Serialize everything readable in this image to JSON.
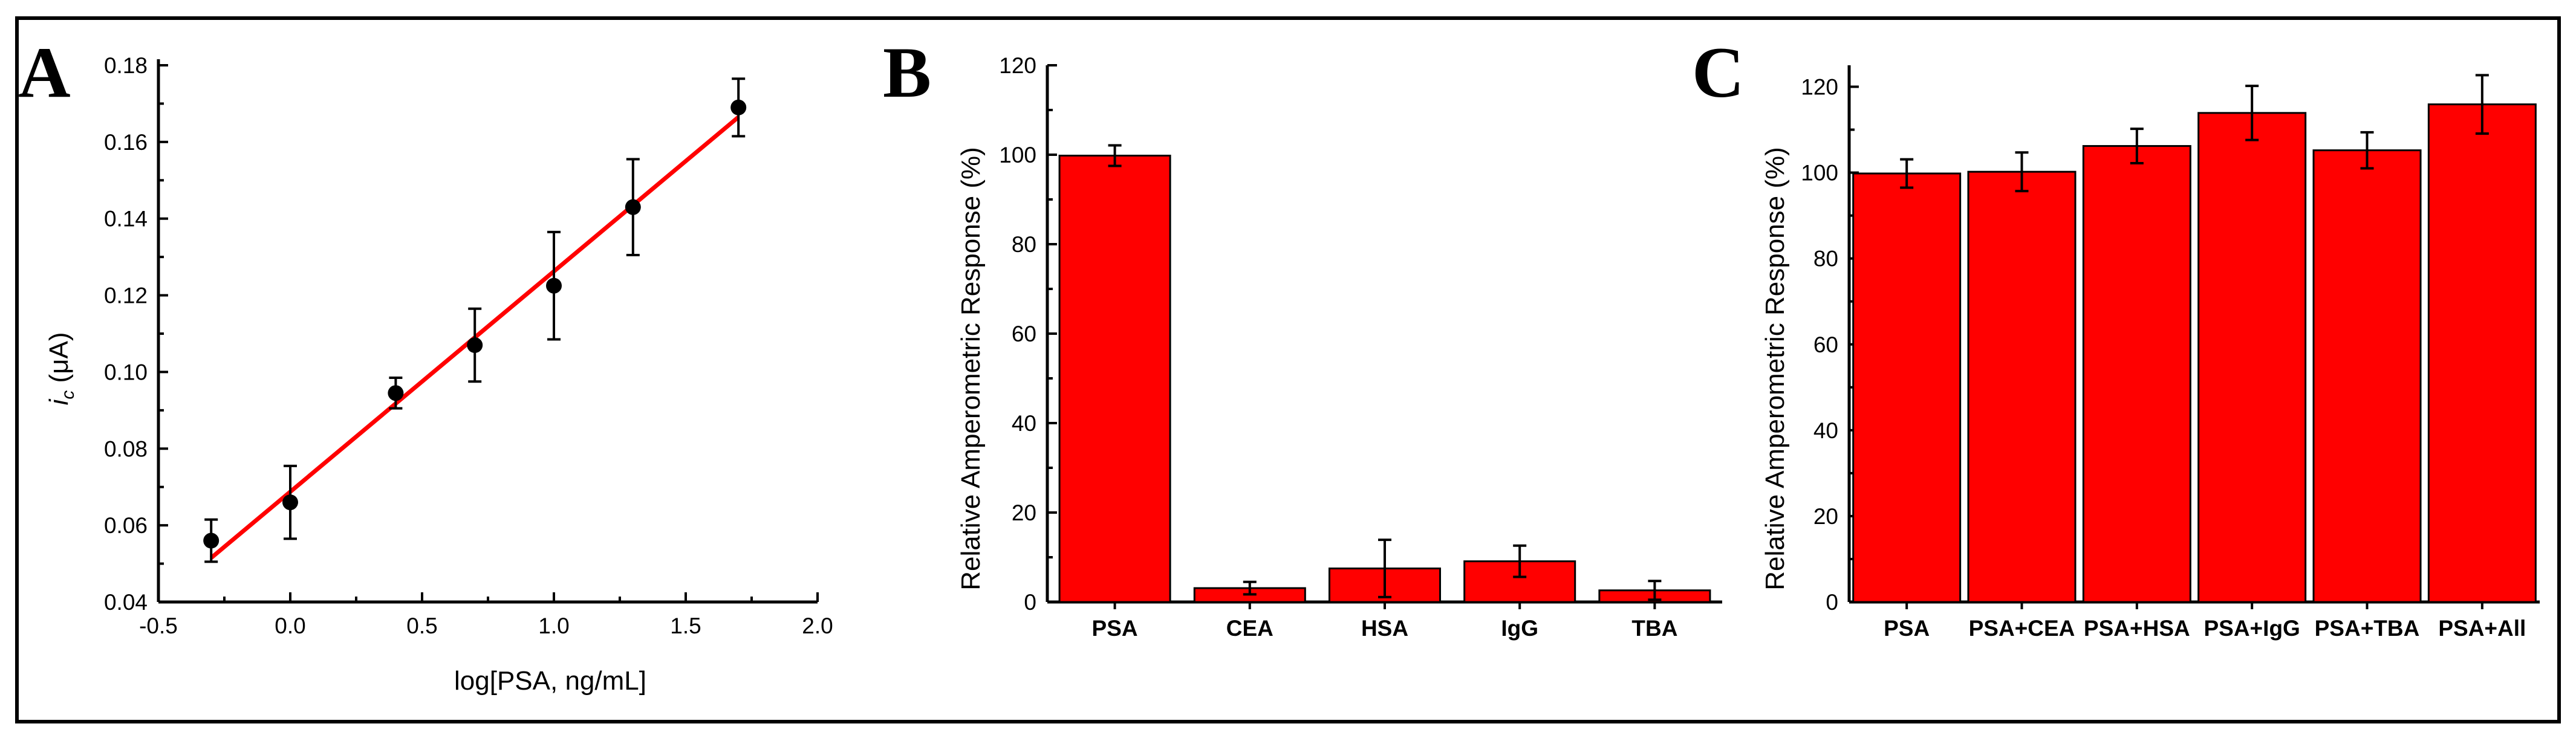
{
  "colors": {
    "bar": "#ff0000",
    "fit_line": "#ff0000",
    "point": "#000000",
    "axis": "#000000"
  },
  "chart_data": [
    {
      "panel_label": "A",
      "type": "scatter",
      "xlabel": "log[PSA, ng/mL]",
      "ylabel_italic": "i",
      "ylabel_sub": "c",
      "ylabel_unit": " (μA)",
      "xlim": [
        -0.5,
        2.0
      ],
      "ylim": [
        0.04,
        0.18
      ],
      "xticks": [
        "-0.5",
        "0.0",
        "0.5",
        "1.0",
        "1.5",
        "2.0"
      ],
      "yticks": [
        "0.04",
        "0.06",
        "0.08",
        "0.10",
        "0.12",
        "0.14",
        "0.16",
        "0.18"
      ],
      "x": [
        -0.3,
        0.0,
        0.4,
        0.7,
        1.0,
        1.3,
        1.7
      ],
      "y": [
        0.056,
        0.066,
        0.0945,
        0.107,
        0.1225,
        0.143,
        0.169
      ],
      "yerr": [
        0.0055,
        0.0095,
        0.004,
        0.0095,
        0.014,
        0.0125,
        0.0075
      ],
      "fit_line": {
        "x": [
          -0.3,
          1.7
        ],
        "y": [
          0.0515,
          0.1665
        ]
      },
      "grid": false
    },
    {
      "panel_label": "B",
      "type": "bar",
      "ylabel": "Relative Amperometric Response  (%)",
      "ylim": [
        0,
        120
      ],
      "yticks": [
        "0",
        "20",
        "40",
        "60",
        "80",
        "100",
        "120"
      ],
      "categories": [
        "PSA",
        "CEA",
        "HSA",
        "IgG",
        "TBA"
      ],
      "values": [
        99.8,
        3.1,
        7.5,
        9.1,
        2.6
      ],
      "yerr": [
        2.3,
        1.4,
        6.4,
        3.5,
        2.1
      ],
      "grid": false
    },
    {
      "panel_label": "C",
      "type": "bar",
      "ylabel": "Relative Amperometric Response  (%)",
      "ylim": [
        0,
        125
      ],
      "yticks": [
        "0",
        "20",
        "40",
        "60",
        "80",
        "100",
        "120"
      ],
      "categories": [
        "PSA",
        "PSA+CEA",
        "PSA+HSA",
        "PSA+IgG",
        "PSA+TBA",
        "PSA+All"
      ],
      "values": [
        99.8,
        100.2,
        106.2,
        113.9,
        105.2,
        115.9
      ],
      "yerr": [
        3.3,
        4.5,
        4.0,
        6.3,
        4.2,
        6.8
      ],
      "grid": false
    }
  ]
}
